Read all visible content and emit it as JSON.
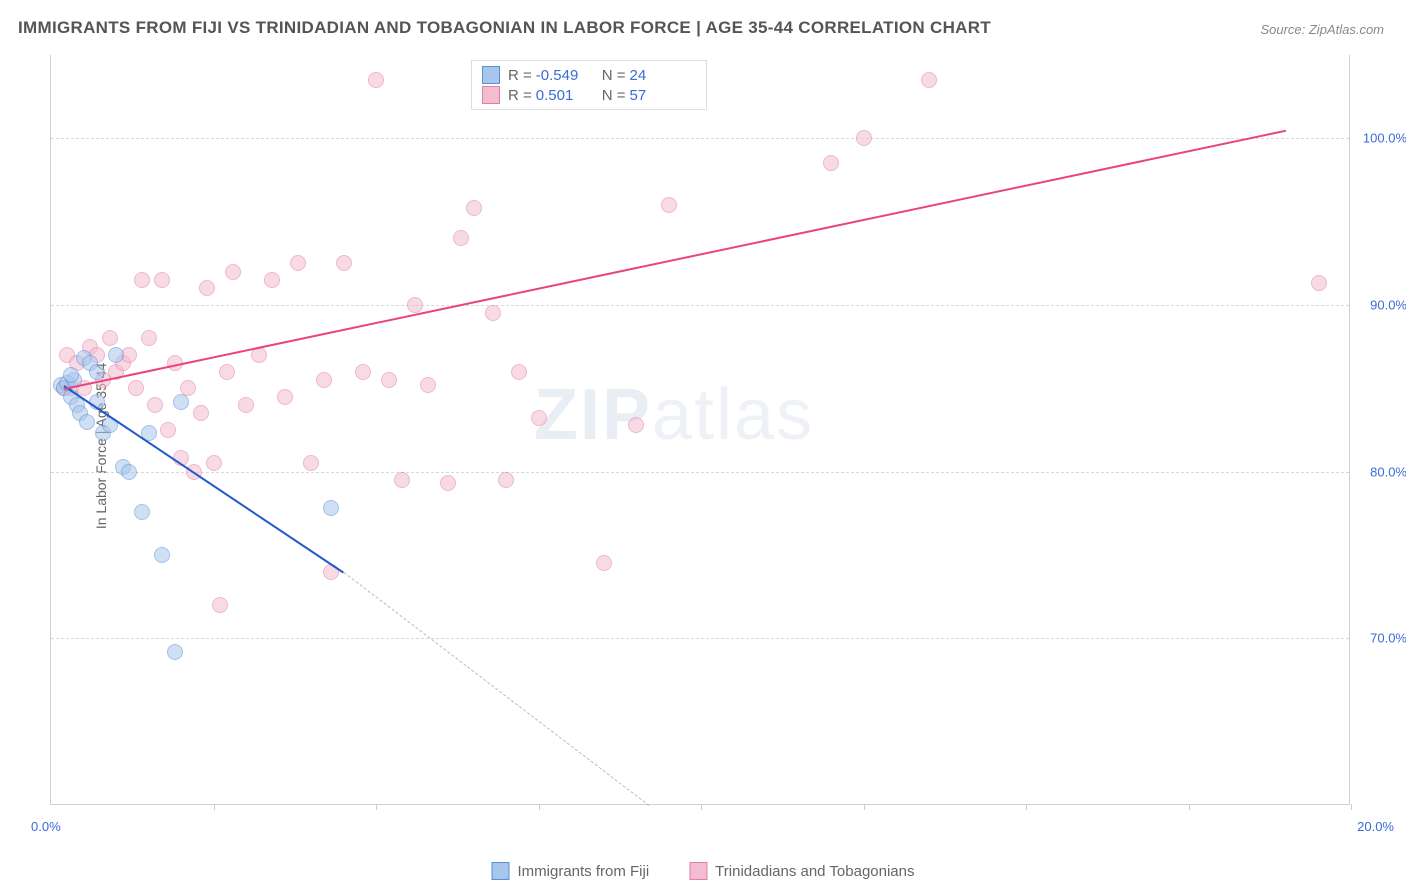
{
  "title": "IMMIGRANTS FROM FIJI VS TRINIDADIAN AND TOBAGONIAN IN LABOR FORCE | AGE 35-44 CORRELATION CHART",
  "source": "Source: ZipAtlas.com",
  "watermark_bold": "ZIP",
  "watermark_thin": "atlas",
  "ylabel": "In Labor Force | Age 35-44",
  "chart": {
    "type": "scatter",
    "xlim": [
      0,
      20
    ],
    "ylim": [
      60,
      105
    ],
    "y_gridlines": [
      70,
      80,
      90,
      100
    ],
    "y_tick_labels": [
      "70.0%",
      "80.0%",
      "90.0%",
      "100.0%"
    ],
    "x_ticks": [
      2.5,
      5,
      7.5,
      10,
      12.5,
      15,
      17.5,
      20
    ],
    "x_start_label": "0.0%",
    "x_end_label": "20.0%",
    "background_color": "#ffffff",
    "grid_color": "#d8d8d8",
    "marker_radius": 8,
    "marker_opacity": 0.55,
    "series": [
      {
        "name": "Immigrants from Fiji",
        "color_fill": "#a8c6ec",
        "color_stroke": "#5a8fd6",
        "trend_color": "#2458c9",
        "R": "-0.549",
        "N": "24",
        "trend_start": [
          0.2,
          85.2
        ],
        "trend_end": [
          4.5,
          74.0
        ],
        "dashed_extend_end": [
          9.2,
          60.0
        ],
        "points": [
          [
            0.15,
            85.2
          ],
          [
            0.2,
            85.0
          ],
          [
            0.25,
            85.3
          ],
          [
            0.3,
            84.5
          ],
          [
            0.35,
            85.5
          ],
          [
            0.3,
            85.8
          ],
          [
            0.4,
            84.0
          ],
          [
            0.45,
            83.5
          ],
          [
            0.5,
            86.8
          ],
          [
            0.6,
            86.5
          ],
          [
            0.55,
            83.0
          ],
          [
            0.7,
            86.0
          ],
          [
            0.8,
            82.3
          ],
          [
            0.7,
            84.2
          ],
          [
            0.9,
            82.8
          ],
          [
            1.0,
            87.0
          ],
          [
            1.1,
            80.3
          ],
          [
            1.2,
            80.0
          ],
          [
            1.4,
            77.6
          ],
          [
            1.5,
            82.3
          ],
          [
            1.7,
            75.0
          ],
          [
            1.9,
            69.2
          ],
          [
            4.3,
            77.8
          ],
          [
            2.0,
            84.2
          ]
        ]
      },
      {
        "name": "Trinidadians and Tobagonians",
        "color_fill": "#f4bcd0",
        "color_stroke": "#e37da3",
        "trend_color": "#e8447e",
        "R": "0.501",
        "N": "57",
        "trend_start": [
          0.2,
          85.0
        ],
        "trend_end": [
          19.0,
          100.5
        ],
        "points": [
          [
            0.2,
            85.0
          ],
          [
            0.25,
            87.0
          ],
          [
            0.3,
            85.0
          ],
          [
            0.4,
            86.5
          ],
          [
            0.5,
            85.0
          ],
          [
            0.6,
            87.5
          ],
          [
            0.7,
            87.0
          ],
          [
            0.8,
            85.5
          ],
          [
            0.9,
            88.0
          ],
          [
            1.0,
            86.0
          ],
          [
            1.1,
            86.5
          ],
          [
            1.2,
            87.0
          ],
          [
            1.3,
            85.0
          ],
          [
            1.4,
            91.5
          ],
          [
            1.5,
            88.0
          ],
          [
            1.6,
            84.0
          ],
          [
            1.7,
            91.5
          ],
          [
            1.8,
            82.5
          ],
          [
            1.9,
            86.5
          ],
          [
            2.0,
            80.8
          ],
          [
            2.1,
            85.0
          ],
          [
            2.2,
            80.0
          ],
          [
            2.3,
            83.5
          ],
          [
            2.4,
            91.0
          ],
          [
            2.5,
            80.5
          ],
          [
            2.6,
            72.0
          ],
          [
            2.7,
            86.0
          ],
          [
            2.8,
            92.0
          ],
          [
            3.0,
            84.0
          ],
          [
            3.2,
            87.0
          ],
          [
            3.4,
            91.5
          ],
          [
            3.6,
            84.5
          ],
          [
            3.8,
            92.5
          ],
          [
            4.0,
            80.5
          ],
          [
            4.2,
            85.5
          ],
          [
            4.3,
            74.0
          ],
          [
            4.5,
            92.5
          ],
          [
            4.8,
            86.0
          ],
          [
            5.0,
            103.5
          ],
          [
            5.2,
            85.5
          ],
          [
            5.4,
            79.5
          ],
          [
            5.6,
            90.0
          ],
          [
            5.8,
            85.2
          ],
          [
            6.1,
            79.3
          ],
          [
            6.3,
            94.0
          ],
          [
            6.5,
            95.8
          ],
          [
            6.8,
            89.5
          ],
          [
            7.0,
            79.5
          ],
          [
            7.2,
            86.0
          ],
          [
            7.5,
            83.2
          ],
          [
            8.5,
            74.5
          ],
          [
            9.0,
            82.8
          ],
          [
            9.5,
            96.0
          ],
          [
            12.0,
            98.5
          ],
          [
            12.5,
            100.0
          ],
          [
            13.5,
            103.5
          ],
          [
            19.5,
            91.3
          ]
        ]
      }
    ]
  },
  "bottom_legend": [
    {
      "label": "Immigrants from Fiji",
      "fill": "#a8c6ec",
      "stroke": "#5a8fd6"
    },
    {
      "label": "Trinidadians and Tobagonians",
      "fill": "#f4bcd0",
      "stroke": "#e37da3"
    }
  ],
  "legend_labels": {
    "r": "R =",
    "n": "N ="
  }
}
